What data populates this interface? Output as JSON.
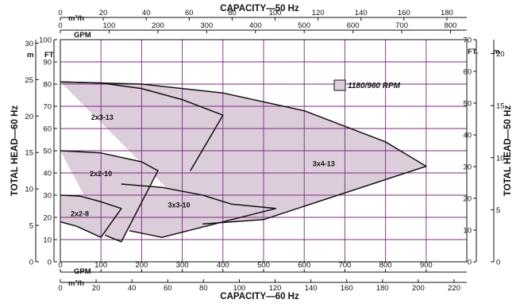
{
  "chart_data": {
    "type": "area",
    "x_axis_bottom_title": "CAPACITY—60 Hz",
    "x_axis_top_title": "CAPACITY—50 Hz",
    "y_axis_left_title": "TOTAL HEAD—60 Hz",
    "y_axis_right_title": "TOTAL HEAD—50 Hz",
    "units": {
      "bottom_gpm": "GPM",
      "bottom_m3h": "m³/h",
      "top_m3h": "m³/h",
      "top_gpm": "GPM",
      "left_m": "m",
      "left_ft": "FT.",
      "right_ft": "FT.",
      "right_m": "m"
    },
    "axes": {
      "gpm60": {
        "range": [
          0,
          1000
        ],
        "ticks": [
          0,
          100,
          200,
          300,
          400,
          500,
          600,
          700,
          800,
          900
        ]
      },
      "m3h60": {
        "ticks": [
          0,
          20,
          40,
          60,
          80,
          100,
          120,
          140,
          160,
          180,
          200,
          220
        ]
      },
      "m3h50": {
        "ticks": [
          0,
          20,
          40,
          60,
          80,
          100,
          120,
          140,
          160,
          180
        ]
      },
      "gpm50": {
        "ticks": [
          0,
          100,
          200,
          300,
          400,
          500,
          600,
          700,
          800
        ]
      },
      "ft60": {
        "range": [
          0,
          100
        ],
        "ticks": [
          0,
          10,
          20,
          30,
          40,
          50,
          60,
          70,
          80,
          90,
          100
        ]
      },
      "m60": {
        "ticks": [
          0,
          5,
          10,
          15,
          20,
          25,
          30
        ]
      },
      "ft50": {
        "range": [
          0,
          70
        ],
        "ticks": [
          0,
          10,
          20,
          30,
          40,
          50,
          60,
          70
        ]
      },
      "m50": {
        "ticks": [
          0,
          5,
          10,
          15,
          20
        ]
      }
    },
    "grid": true,
    "legend": {
      "label": "1180/960 RPM",
      "color": "#dccdda",
      "position": "top-right"
    },
    "fill_color": "#dccdda",
    "curves": [
      {
        "name": "2x3-13",
        "label_at": [
          103,
          64
        ],
        "points": [
          [
            0,
            81
          ],
          [
            100,
            80.5
          ],
          [
            200,
            78
          ],
          [
            300,
            73
          ],
          [
            400,
            66
          ],
          [
            320,
            41
          ]
        ]
      },
      {
        "name": "3x4-13",
        "label_at": [
          648,
          43
        ],
        "points": [
          [
            0,
            81
          ],
          [
            200,
            80
          ],
          [
            400,
            76
          ],
          [
            600,
            68
          ],
          [
            800,
            54
          ],
          [
            900,
            43
          ],
          [
            500,
            19
          ],
          [
            350,
            17
          ]
        ]
      },
      {
        "name": "2x2-10",
        "label_at": [
          100,
          38.5
        ],
        "points": [
          [
            0,
            50
          ],
          [
            100,
            49
          ],
          [
            200,
            45
          ],
          [
            240,
            41
          ],
          [
            150,
            9
          ],
          [
            110,
            12
          ]
        ]
      },
      {
        "name": "3x3-10",
        "label_at": [
          292,
          24.5
        ],
        "points": [
          [
            150,
            35
          ],
          [
            250,
            33.5
          ],
          [
            350,
            30
          ],
          [
            420,
            26
          ],
          [
            530,
            24
          ],
          [
            250,
            11
          ],
          [
            170,
            14
          ]
        ]
      },
      {
        "name": "2x2-8",
        "label_at": [
          48,
          20.5
        ],
        "points": [
          [
            0,
            30
          ],
          [
            50,
            29.5
          ],
          [
            100,
            27
          ],
          [
            150,
            24
          ],
          [
            100,
            11
          ],
          [
            40,
            16
          ],
          [
            0,
            18
          ]
        ]
      }
    ]
  }
}
